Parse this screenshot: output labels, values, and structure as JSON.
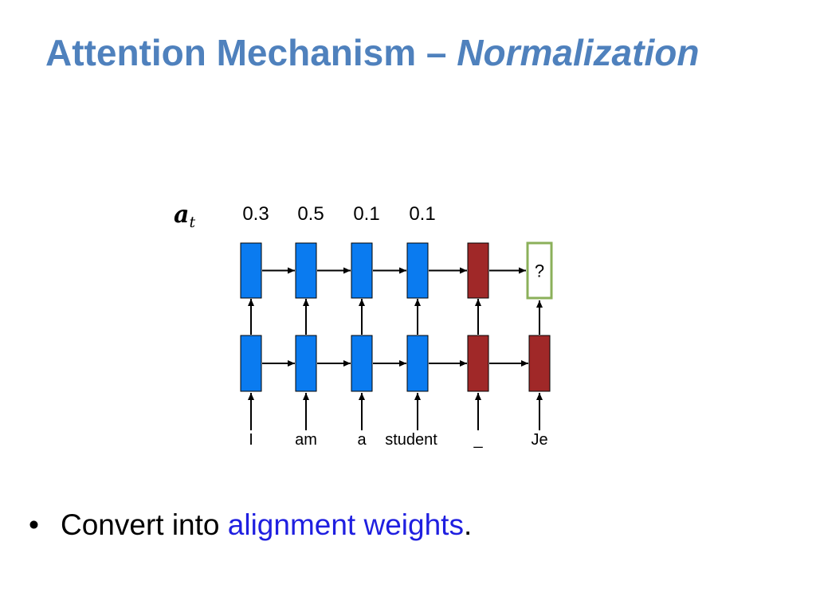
{
  "slide": {
    "title_main": "Attention Mechanism – ",
    "title_emph": "Normalization"
  },
  "diagram": {
    "weights_symbol": "a",
    "weights_subscript": "t",
    "weights": [
      "0.3",
      "0.5",
      "0.1",
      "0.1"
    ],
    "upper_row": [
      {
        "kind": "encoder"
      },
      {
        "kind": "encoder"
      },
      {
        "kind": "encoder"
      },
      {
        "kind": "encoder"
      },
      {
        "kind": "decoder"
      },
      {
        "kind": "prediction",
        "label": "?"
      }
    ],
    "lower_row": [
      {
        "kind": "encoder"
      },
      {
        "kind": "encoder"
      },
      {
        "kind": "encoder"
      },
      {
        "kind": "encoder"
      },
      {
        "kind": "decoder"
      },
      {
        "kind": "decoder"
      }
    ],
    "input_words": [
      "I",
      "am",
      "a",
      "student",
      "_",
      "Je"
    ],
    "colors": {
      "encoder": "#0a7bf0",
      "decoder": "#a02828",
      "prediction_border": "#8bb05a",
      "arrow": "#000000"
    }
  },
  "bullets": [
    {
      "dot": "•",
      "text_before": "Convert into ",
      "highlight": "alignment weights",
      "text_after": "."
    }
  ]
}
